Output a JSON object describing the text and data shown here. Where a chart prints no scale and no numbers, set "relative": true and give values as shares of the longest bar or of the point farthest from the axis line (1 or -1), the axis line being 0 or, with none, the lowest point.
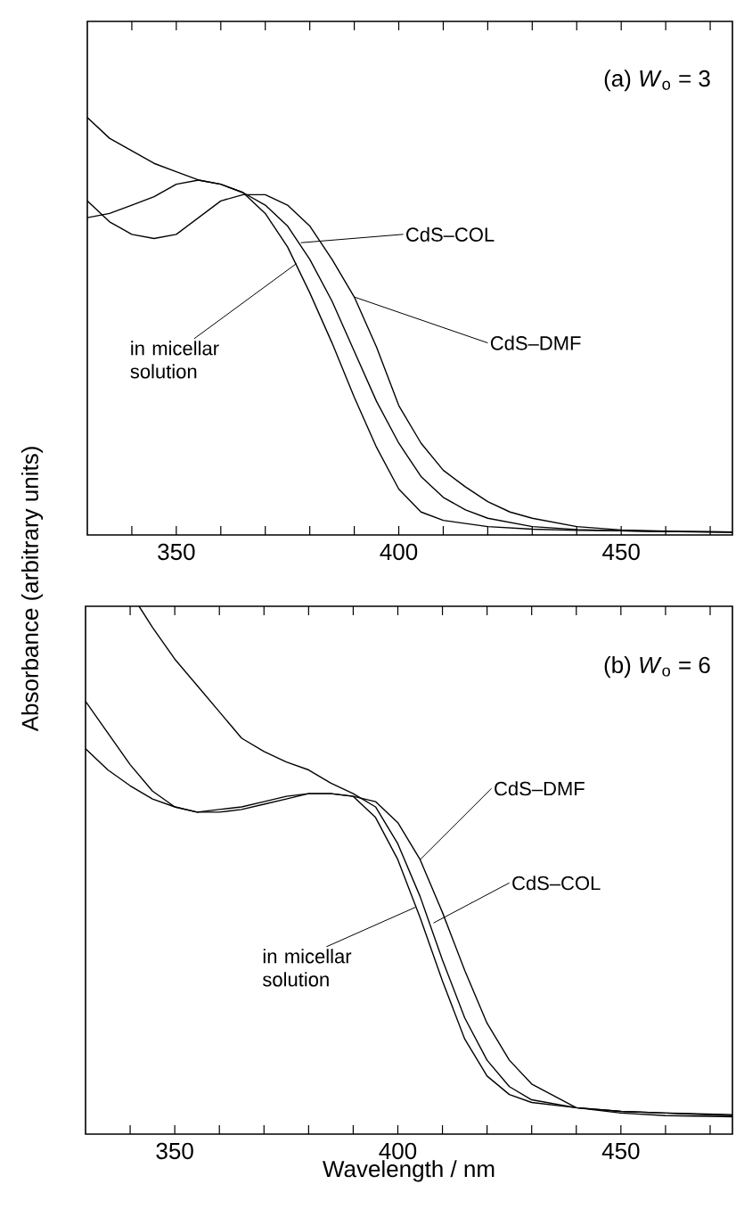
{
  "chart_data": [
    {
      "type": "line",
      "relative": true,
      "ylabel": "Absorbance (arbitrary units)",
      "xlim": [
        330,
        475
      ],
      "tick_labels": "x",
      "xticks": [
        {
          "value": 340,
          "label": null
        },
        350,
        {
          "value": 360,
          "label": null
        },
        {
          "value": 370,
          "label": null
        },
        {
          "value": 380,
          "label": null
        },
        {
          "value": 390,
          "label": null
        },
        400,
        {
          "value": 410,
          "label": null
        },
        {
          "value": 420,
          "label": null
        },
        {
          "value": 430,
          "label": null
        },
        {
          "value": 440,
          "label": null
        },
        450,
        {
          "value": 460,
          "label": null
        },
        {
          "value": 470,
          "label": null
        }
      ],
      "series": [
        {
          "color": "#000000",
          "x": [
            330,
            335,
            340,
            345,
            350,
            355,
            360,
            365,
            370,
            375,
            380,
            385,
            390,
            395,
            400,
            405,
            410,
            415,
            420,
            430,
            440,
            450,
            460,
            475
          ],
          "values": [
            1.0,
            0.95,
            0.92,
            0.89,
            0.87,
            0.85,
            0.84,
            0.82,
            0.79,
            0.74,
            0.66,
            0.56,
            0.44,
            0.32,
            0.22,
            0.14,
            0.09,
            0.06,
            0.04,
            0.02,
            0.013,
            0.01,
            0.008,
            0.007
          ]
        },
        {
          "color": "#000000",
          "x": [
            330,
            335,
            340,
            345,
            350,
            355,
            360,
            365,
            370,
            375,
            380,
            385,
            390,
            395,
            400,
            405,
            410,
            415,
            420,
            425,
            430,
            440,
            450,
            460,
            475
          ],
          "values": [
            0.8,
            0.75,
            0.72,
            0.71,
            0.72,
            0.76,
            0.8,
            0.815,
            0.815,
            0.79,
            0.74,
            0.66,
            0.57,
            0.45,
            0.31,
            0.22,
            0.155,
            0.115,
            0.08,
            0.055,
            0.04,
            0.02,
            0.012,
            0.009,
            0.007
          ]
        },
        {
          "color": "#000000",
          "x": [
            330,
            335,
            340,
            345,
            350,
            355,
            360,
            365,
            370,
            375,
            380,
            385,
            390,
            395,
            400,
            405,
            410,
            420,
            430,
            440,
            450,
            460,
            475
          ],
          "values": [
            0.76,
            0.77,
            0.79,
            0.81,
            0.84,
            0.85,
            0.84,
            0.82,
            0.77,
            0.69,
            0.58,
            0.46,
            0.33,
            0.21,
            0.11,
            0.055,
            0.035,
            0.02,
            0.014,
            0.011,
            0.01,
            0.008,
            0.007
          ]
        }
      ],
      "annotations": [
        "(a) *W*$_{o}$ = 3",
        {
          "text": "CdS–COL",
          "x": 378,
          "y": 0.7
        },
        {
          "text": "CdS–DMF",
          "x": 390,
          "y": 0.57
        },
        {
          "text": "in micellar solution",
          "x": 377,
          "y": 0.65
        }
      ]
    },
    {
      "type": "line",
      "relative": true,
      "xlabel": "Wavelength / nm",
      "xlim": [
        330,
        475
      ],
      "tick_labels": "x",
      "xticks": [
        {
          "value": 340,
          "label": null
        },
        350,
        {
          "value": 360,
          "label": null
        },
        {
          "value": 370,
          "label": null
        },
        {
          "value": 380,
          "label": null
        },
        {
          "value": 390,
          "label": null
        },
        400,
        {
          "value": 410,
          "label": null
        },
        {
          "value": 420,
          "label": null
        },
        {
          "value": 430,
          "label": null
        },
        {
          "value": 440,
          "label": null
        },
        450,
        {
          "value": 460,
          "label": null
        },
        {
          "value": 470,
          "label": null
        }
      ],
      "series": [
        {
          "color": "#000000",
          "x": [
            342,
            345,
            350,
            355,
            360,
            365,
            370,
            375,
            380,
            385,
            390,
            395,
            400,
            405,
            410,
            415,
            420,
            425,
            430,
            440,
            450,
            460,
            475
          ],
          "values": [
            1.0,
            0.96,
            0.9,
            0.85,
            0.8,
            0.75,
            0.725,
            0.705,
            0.69,
            0.665,
            0.645,
            0.62,
            0.55,
            0.45,
            0.33,
            0.22,
            0.14,
            0.09,
            0.065,
            0.05,
            0.043,
            0.04,
            0.037
          ]
        },
        {
          "color": "#000000",
          "x": [
            330,
            335,
            340,
            345,
            350,
            355,
            360,
            365,
            370,
            375,
            380,
            385,
            390,
            395,
            400,
            405,
            410,
            415,
            420,
            425,
            430,
            440,
            450,
            460,
            475
          ],
          "values": [
            0.82,
            0.76,
            0.7,
            0.65,
            0.62,
            0.61,
            0.615,
            0.62,
            0.63,
            0.64,
            0.645,
            0.645,
            0.64,
            0.63,
            0.59,
            0.52,
            0.42,
            0.31,
            0.21,
            0.14,
            0.095,
            0.05,
            0.04,
            0.035,
            0.033
          ]
        },
        {
          "color": "#000000",
          "x": [
            330,
            335,
            340,
            345,
            350,
            355,
            360,
            365,
            370,
            375,
            380,
            385,
            390,
            395,
            400,
            405,
            410,
            415,
            420,
            425,
            430,
            440,
            450,
            460,
            475
          ],
          "values": [
            0.73,
            0.69,
            0.66,
            0.635,
            0.62,
            0.61,
            0.61,
            0.615,
            0.625,
            0.635,
            0.645,
            0.645,
            0.64,
            0.6,
            0.52,
            0.41,
            0.29,
            0.18,
            0.11,
            0.075,
            0.06,
            0.05,
            0.043,
            0.04,
            0.035
          ]
        }
      ],
      "annotations": [
        "(b) *W*$_{o}$ = 6",
        {
          "text": "CdS–DMF",
          "x": 405,
          "y": 0.52
        },
        {
          "text": "CdS–COL",
          "x": 408,
          "y": 0.4
        },
        {
          "text": "in micellar solution",
          "x": 404,
          "y": 0.43
        }
      ]
    }
  ]
}
